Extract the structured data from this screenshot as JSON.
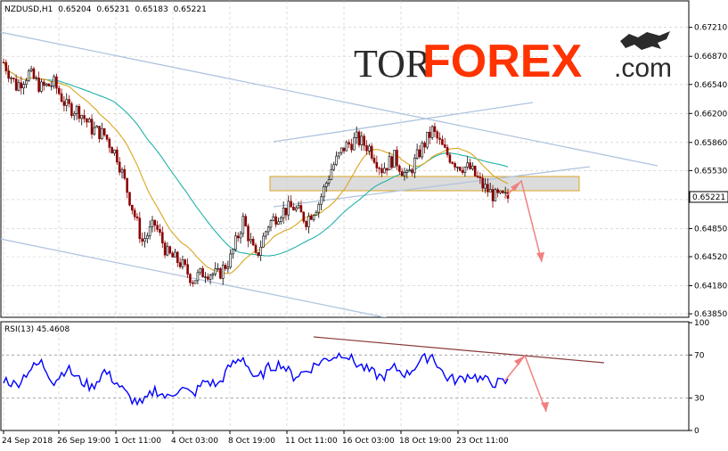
{
  "chart_data": [
    {
      "type": "candlestick",
      "title": "NZDUSD,H1",
      "ohlc": [
        "0.65204",
        "0.65231",
        "0.65183",
        "0.65221"
      ],
      "last_price_label": "0.65221",
      "ylim": [
        0.6383,
        0.6728
      ],
      "y_ticks": [
        "0.67210",
        "0.66870",
        "0.66540",
        "0.66200",
        "0.65860",
        "0.65530",
        "0.65190",
        "0.64850",
        "0.64520",
        "0.64180",
        "0.63850"
      ],
      "x_ticks": [
        "24 Sep 2018",
        "26 Sep 19:00",
        "1 Oct 11:00",
        "4 Oct 03:00",
        "8 Oct 19:00",
        "11 Oct 11:00",
        "16 Oct 03:00",
        "18 Oct 19:00",
        "23 Oct 11:00"
      ],
      "x_index_range": [
        0,
        200
      ],
      "price_path": [
        [
          0,
          0.668
        ],
        [
          5,
          0.6652
        ],
        [
          10,
          0.6667
        ],
        [
          15,
          0.665
        ],
        [
          20,
          0.6655
        ],
        [
          25,
          0.6628
        ],
        [
          30,
          0.6623
        ],
        [
          35,
          0.6602
        ],
        [
          40,
          0.6595
        ],
        [
          45,
          0.657
        ],
        [
          50,
          0.652
        ],
        [
          55,
          0.647
        ],
        [
          60,
          0.649
        ],
        [
          65,
          0.6455
        ],
        [
          70,
          0.6445
        ],
        [
          75,
          0.6425
        ],
        [
          80,
          0.6435
        ],
        [
          85,
          0.643
        ],
        [
          90,
          0.645
        ],
        [
          95,
          0.6495
        ],
        [
          100,
          0.645
        ],
        [
          105,
          0.649
        ],
        [
          110,
          0.6505
        ],
        [
          115,
          0.651
        ],
        [
          120,
          0.6495
        ],
        [
          125,
          0.6515
        ],
        [
          130,
          0.6555
        ],
        [
          135,
          0.658
        ],
        [
          140,
          0.659
        ],
        [
          145,
          0.658
        ],
        [
          150,
          0.6555
        ],
        [
          155,
          0.6568
        ],
        [
          160,
          0.6545
        ],
        [
          165,
          0.6575
        ],
        [
          170,
          0.66
        ],
        [
          175,
          0.6575
        ],
        [
          180,
          0.656
        ],
        [
          185,
          0.6555
        ],
        [
          190,
          0.6535
        ],
        [
          195,
          0.6522
        ],
        [
          200,
          0.6521
        ]
      ],
      "indicator_note": "RSI(13) 45.4608"
    },
    {
      "type": "line",
      "title": "RSI(13) 45.4608",
      "ylim": [
        0,
        100
      ],
      "y_ticks": [
        "100",
        "70",
        "30",
        "0"
      ],
      "levels": [
        70,
        30
      ],
      "series": [
        {
          "values": [
            [
              0,
              48
            ],
            [
              5,
              42
            ],
            [
              10,
              56
            ],
            [
              15,
              63
            ],
            [
              20,
              45
            ],
            [
              25,
              58
            ],
            [
              30,
              47
            ],
            [
              35,
              40
            ],
            [
              40,
              55
            ],
            [
              45,
              44
            ],
            [
              50,
              30
            ],
            [
              55,
              24
            ],
            [
              60,
              38
            ],
            [
              65,
              30
            ],
            [
              70,
              40
            ],
            [
              75,
              33
            ],
            [
              80,
              46
            ],
            [
              85,
              42
            ],
            [
              90,
              60
            ],
            [
              95,
              68
            ],
            [
              100,
              46
            ],
            [
              105,
              58
            ],
            [
              110,
              62
            ],
            [
              115,
              50
            ],
            [
              120,
              55
            ],
            [
              125,
              63
            ],
            [
              130,
              68
            ],
            [
              135,
              72
            ],
            [
              140,
              62
            ],
            [
              145,
              55
            ],
            [
              150,
              49
            ],
            [
              155,
              58
            ],
            [
              160,
              52
            ],
            [
              165,
              64
            ],
            [
              170,
              70
            ],
            [
              175,
              50
            ],
            [
              180,
              46
            ],
            [
              185,
              52
            ],
            [
              190,
              47
            ],
            [
              195,
              44
            ],
            [
              200,
              45
            ]
          ]
        }
      ]
    }
  ],
  "colors": {
    "background": "#ffffff",
    "candle_up": "#000000",
    "candle_down": "#8b0000",
    "ma_fast": "#daa520",
    "ma_slow": "#20b2aa",
    "channel": "#b0c4de",
    "forecast_arrow": "#f08080",
    "rsi_line": "#0000ff",
    "rsi_trend": "#8b3a3a",
    "zone_fill": "#d3d3d3",
    "zone_border": "#daa520",
    "grid": "#c8c8c8",
    "logo_dark": "#2b2b2b",
    "logo_accent": "#ff3300"
  },
  "watermark": {
    "part1": "TOR",
    "part2": "FOREX",
    "part3": ".com",
    "icon": "bull-bear-icon"
  }
}
